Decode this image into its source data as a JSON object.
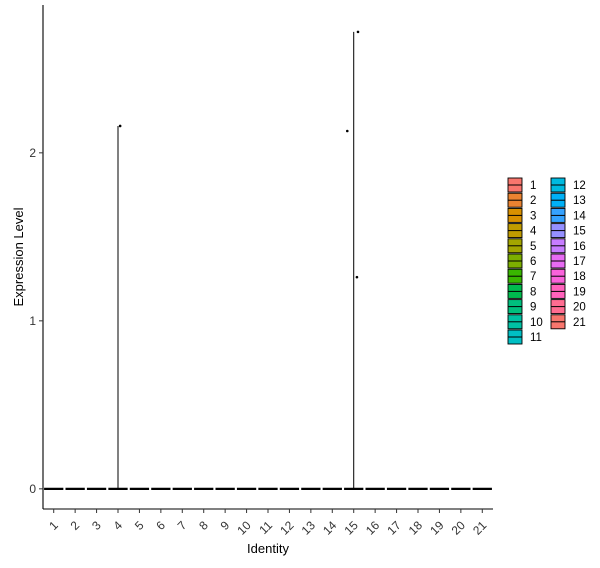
{
  "chart_data": {
    "type": "violin",
    "title": "",
    "xlabel": "Identity",
    "ylabel": "Expression Level",
    "ylim": [
      -0.12,
      2.88
    ],
    "yticks": [
      0,
      1,
      2
    ],
    "grid": false,
    "legend_position": "right",
    "categories": [
      "1",
      "2",
      "3",
      "4",
      "5",
      "6",
      "7",
      "8",
      "9",
      "10",
      "11",
      "12",
      "13",
      "14",
      "15",
      "16",
      "17",
      "18",
      "19",
      "20",
      "21"
    ],
    "colors": [
      "#F8766D",
      "#EA8331",
      "#D89000",
      "#C09B00",
      "#A3A500",
      "#7CAE00",
      "#39B600",
      "#00BB4E",
      "#00BF7D",
      "#00C1A3",
      "#00BFC4",
      "#00BAE0",
      "#00B0F6",
      "#35A2FF",
      "#9590FF",
      "#C77CFF",
      "#E76BF3",
      "#FA62DB",
      "#FF62BC",
      "#FF6C91",
      "#F8766D"
    ],
    "violin_max": [
      0,
      0,
      0,
      2.16,
      0,
      0,
      0,
      0,
      0,
      0,
      0,
      0,
      0,
      0,
      2.72,
      0,
      0,
      0,
      0,
      0,
      0
    ],
    "points": [
      {
        "category": "4",
        "offset": 0.1,
        "value": 2.16
      },
      {
        "category": "15",
        "offset": -0.3,
        "value": 2.13
      },
      {
        "category": "15",
        "offset": 0.15,
        "value": 1.26
      },
      {
        "category": "15",
        "offset": 0.2,
        "value": 2.72
      }
    ],
    "legend_columns": [
      [
        "1",
        "2",
        "3",
        "4",
        "5",
        "6",
        "7",
        "8",
        "9",
        "10",
        "11"
      ],
      [
        "12",
        "13",
        "14",
        "15",
        "16",
        "17",
        "18",
        "19",
        "20",
        "21"
      ]
    ]
  }
}
